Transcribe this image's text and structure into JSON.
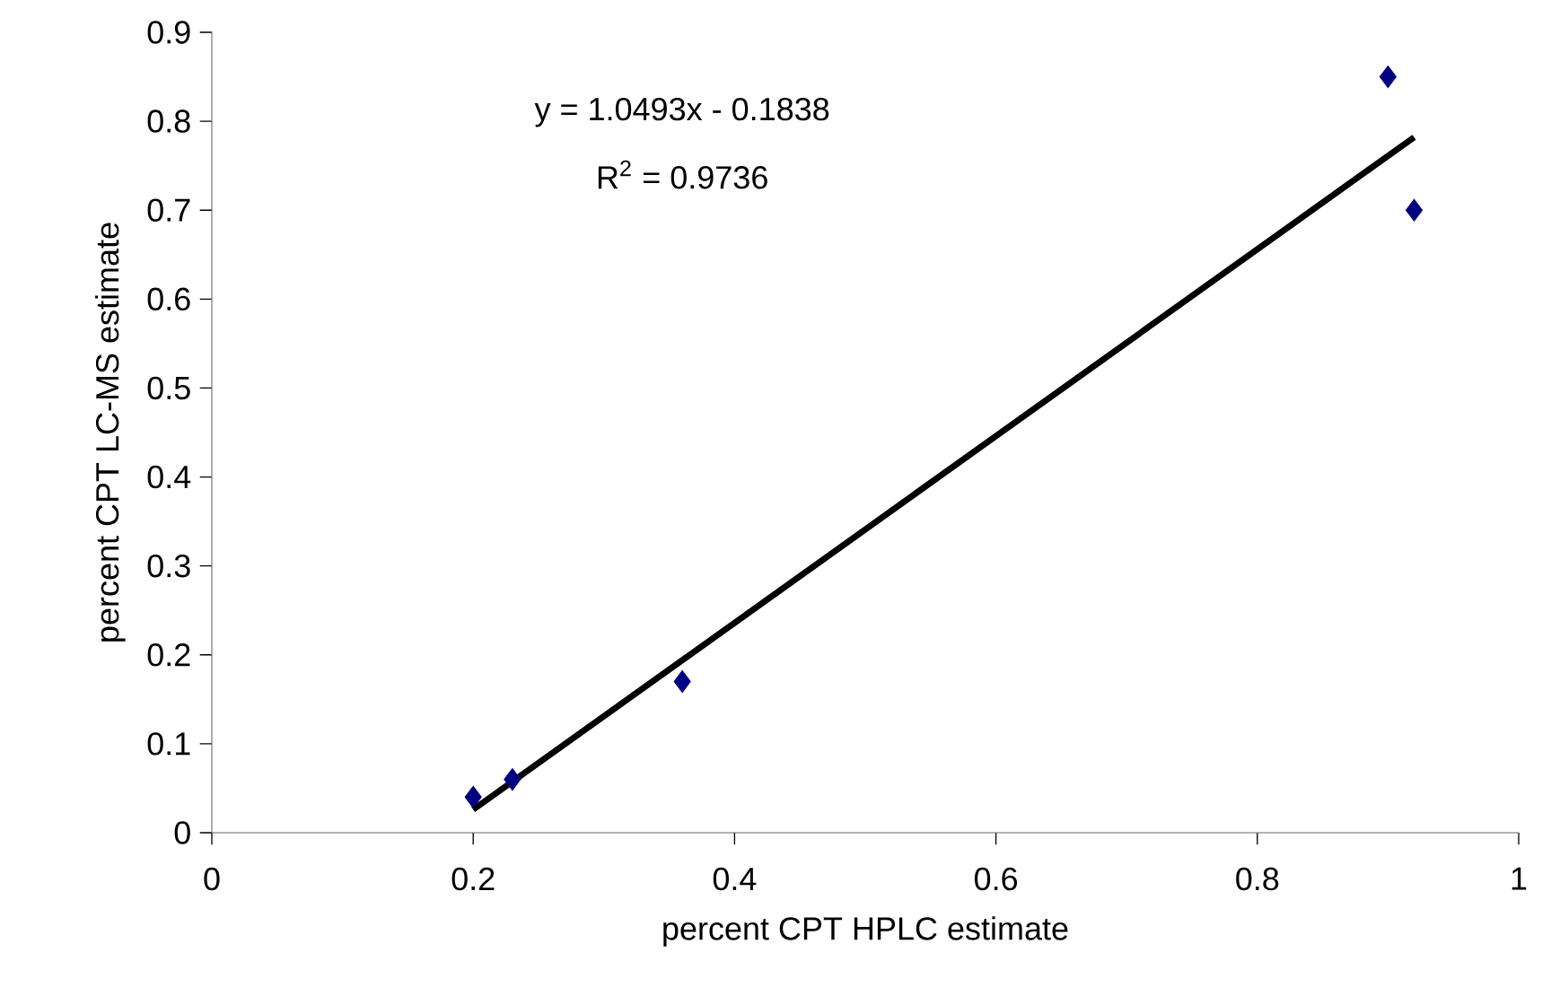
{
  "chart_data": {
    "type": "scatter",
    "xlabel": "percent CPT HPLC estimate",
    "ylabel": "percent CPT LC-MS estimate",
    "x": [
      0.2,
      0.23,
      0.36,
      0.9,
      0.92
    ],
    "series": [
      {
        "color": "#000080",
        "values": [
          0.04,
          0.06,
          0.17,
          0.85,
          0.7
        ],
        "marker": "diamond"
      },
      {
        "type": "line",
        "color": "#000000",
        "x": [
          0.2,
          0.92
        ],
        "values": [
          0.026,
          0.782
        ],
        "marker": "none"
      }
    ],
    "annotations": [
      "y = 1.0493x - 0.1838",
      "R$^{2}$ = 0.9736"
    ],
    "xlim": [
      0,
      1
    ],
    "ylim": [
      0,
      0.9
    ],
    "xticks": [
      0,
      0.2,
      0.4,
      0.6,
      0.8,
      1
    ],
    "yticks": [
      0,
      0.1,
      0.2,
      0.3,
      0.4,
      0.5,
      0.6,
      0.7,
      0.8,
      0.9
    ],
    "grid": false
  }
}
